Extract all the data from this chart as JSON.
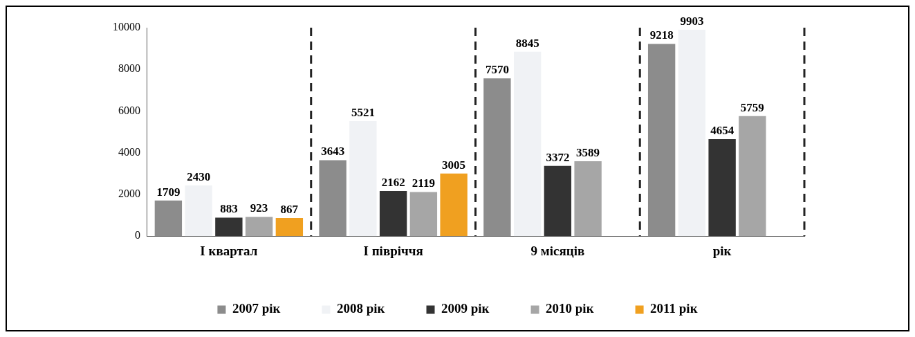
{
  "chart_data": {
    "type": "bar",
    "categories": [
      "I квартал",
      "I півріччя",
      "9 місяців",
      "рік"
    ],
    "series": [
      {
        "name": "2007 рік",
        "color": "#8c8c8c",
        "values": [
          1709,
          3643,
          7570,
          9218
        ]
      },
      {
        "name": "2008 рік",
        "color": "#f0f2f5",
        "values": [
          2430,
          5521,
          8845,
          9903
        ]
      },
      {
        "name": "2009 рік",
        "color": "#333333",
        "values": [
          883,
          2162,
          3372,
          4654
        ]
      },
      {
        "name": "2010 рік",
        "color": "#a6a6a6",
        "values": [
          923,
          2119,
          3589,
          5759
        ]
      },
      {
        "name": "2011 рік",
        "color": "#f0a020",
        "values": [
          867,
          3005,
          null,
          null
        ]
      }
    ],
    "ylim": [
      0,
      10000
    ],
    "yticks": [
      0,
      2000,
      4000,
      6000,
      8000,
      10000
    ],
    "grid": "x",
    "legend": "bottom",
    "data_labels": true
  }
}
